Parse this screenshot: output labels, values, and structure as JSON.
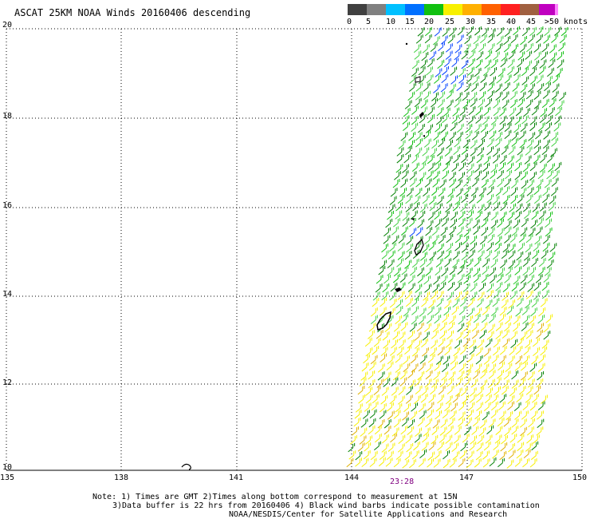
{
  "title": "ASCAT 25KM NOAA Winds 20160406 descending",
  "legend": {
    "labels": [
      "0",
      "5",
      "10",
      "15",
      "20",
      "25",
      "30",
      "35",
      "40",
      "45",
      ">50 knots"
    ],
    "colors": [
      "#404040",
      "#808080",
      "#00c0ff",
      "#0070ff",
      "#10c010",
      "#f8f000",
      "#ffb000",
      "#ff6000",
      "#ff2020",
      "#a06040",
      "#ff80ff",
      "#c000c0",
      "#500090"
    ]
  },
  "axes": {
    "lat_ticks": [
      "20",
      "18",
      "16",
      "14",
      "12",
      "10"
    ],
    "lon_ticks": [
      "135",
      "138",
      "141",
      "144",
      "147",
      "150"
    ]
  },
  "pass_time": "23:28",
  "notes": [
    "Note: 1) Times are GMT 2)Times along bottom correspond to measurement at 15N",
    "3)Data buffer is 22 hrs from 20160406 4) Black wind barbs indicate possible contamination",
    "NOAA/NESDIS/Center for Satellite Applications and Research"
  ],
  "colors": {
    "dark_green": "#008000",
    "green": "#10c010",
    "light_green": "#40d040",
    "yellow": "#f8f000",
    "gold": "#e0b000",
    "blue": "#0040ff",
    "land": "#000000"
  }
}
